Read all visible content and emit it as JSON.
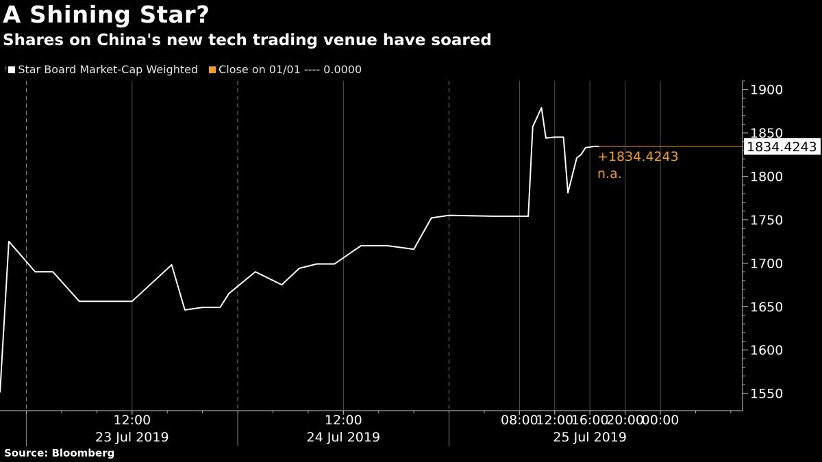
{
  "title": "A Shining Star?",
  "subtitle": "Shares on China's new tech trading venue have soared",
  "legend": [
    {
      "label": "Star Board Market-Cap Weighted",
      "color": "#ffffff"
    },
    {
      "label": "Close on 01/01 ---- 0.0000",
      "color": "#f39c1f"
    }
  ],
  "source": "Source: Bloomberg",
  "colors": {
    "background": "#000000",
    "series": "#ffffff",
    "accent": "#f39c1f",
    "grid": "#555555"
  },
  "chart_data": {
    "type": "line",
    "title": "A Shining Star?",
    "subtitle": "Shares on China's new tech trading venue have soared",
    "ylim": [
      1530,
      1910
    ],
    "yticks": [
      1550,
      1600,
      1650,
      1700,
      1750,
      1800,
      1850,
      1900
    ],
    "ytick_labels": [
      "1550",
      "1600",
      "1650",
      "1700",
      "1750",
      "1800",
      "1850",
      "1900"
    ],
    "y_axis_side": "right",
    "xlim": [
      "2019-07-22 21:00",
      "2019-07-26 09:20"
    ],
    "xticks": [
      "2019-07-23 12:00",
      "2019-07-24 12:00",
      "2019-07-25 08:00",
      "2019-07-25 12:00",
      "2019-07-25 16:00",
      "2019-07-25 20:00",
      "2019-07-26 00:00"
    ],
    "xtick_labels": [
      "12:00",
      "12:00",
      "08:00",
      "12:00",
      "16:00",
      "20:00",
      "00:00"
    ],
    "date_labels": [
      {
        "text": "23 Jul 2019",
        "at": "2019-07-23 12:00"
      },
      {
        "text": "24 Jul 2019",
        "at": "2019-07-24 12:00"
      },
      {
        "text": "25 Jul 2019",
        "at": "2019-07-25 16:00"
      }
    ],
    "day_separators": [
      "2019-07-23 00:00",
      "2019-07-24 00:00",
      "2019-07-25 00:00"
    ],
    "grid": "vertical",
    "legend_position": "top-left",
    "series": [
      {
        "name": "Star Board Market-Cap Weighted",
        "color": "#ffffff",
        "x": [
          "2019-07-22 21:00",
          "2019-07-22 22:00",
          "2019-07-23 01:00",
          "2019-07-23 03:00",
          "2019-07-23 06:00",
          "2019-07-23 09:00",
          "2019-07-23 12:00",
          "2019-07-23 15:00",
          "2019-07-23 16:30",
          "2019-07-23 18:00",
          "2019-07-23 20:00",
          "2019-07-23 22:00",
          "2019-07-23 23:00",
          "2019-07-24 02:00",
          "2019-07-24 05:00",
          "2019-07-24 07:00",
          "2019-07-24 09:00",
          "2019-07-24 11:00",
          "2019-07-24 14:00",
          "2019-07-24 17:00",
          "2019-07-24 20:00",
          "2019-07-24 22:00",
          "2019-07-25 00:00",
          "2019-07-25 05:00",
          "2019-07-25 09:00",
          "2019-07-25 09:30",
          "2019-07-25 10:30",
          "2019-07-25 11:00",
          "2019-07-25 12:00",
          "2019-07-25 13:00",
          "2019-07-25 13:30",
          "2019-07-25 14:30",
          "2019-07-25 15:00",
          "2019-07-25 15:30",
          "2019-07-25 16:30",
          "2019-07-25 17:00"
        ],
        "y": [
          1551,
          1725,
          1690,
          1690,
          1656,
          1656,
          1656,
          1684,
          1698,
          1646,
          1649,
          1649,
          1665,
          1690,
          1675,
          1694,
          1699,
          1699,
          1720,
          1720,
          1716,
          1752,
          1755,
          1754,
          1754,
          1857,
          1879,
          1844,
          1845,
          1845,
          1781,
          1821,
          1825,
          1833,
          1834.4243,
          1834.4243
        ]
      }
    ],
    "last_value_label": "1834.4243",
    "annotation_value": "+1834.4243",
    "annotation_change": "n.a."
  }
}
